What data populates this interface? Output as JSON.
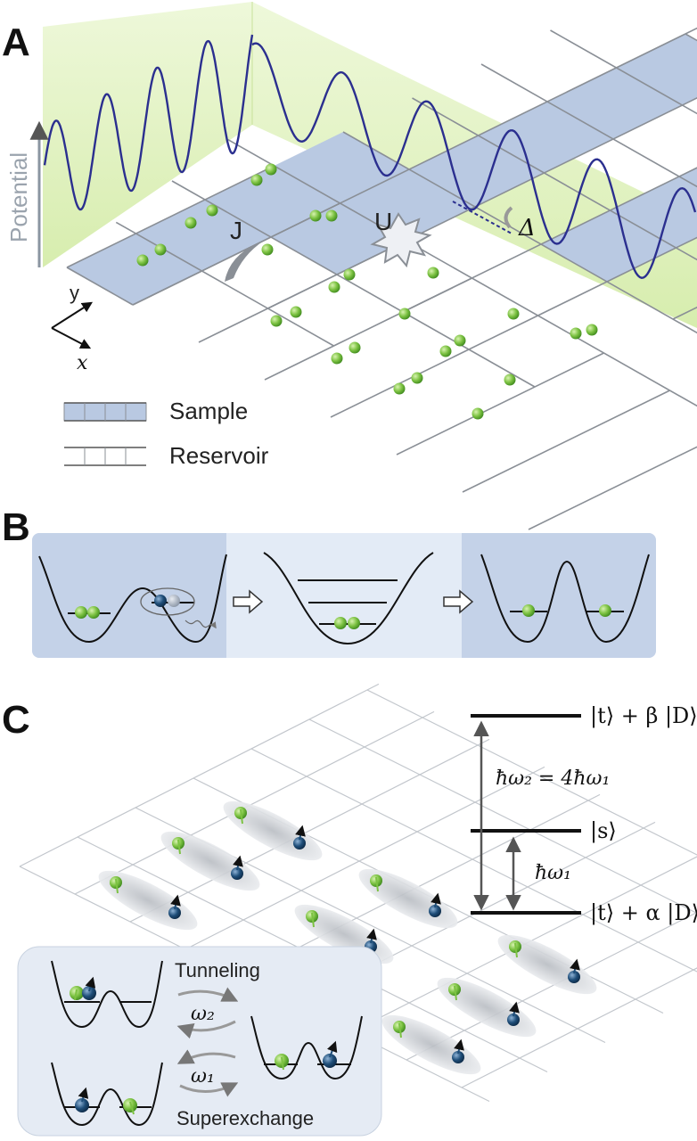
{
  "panels": {
    "a": {
      "letter": "A",
      "axis_label": "Potential",
      "hopping_label": "J",
      "interaction_label": "U",
      "offset_label": "Δ",
      "axis_y": "y",
      "axis_x": "x",
      "legend": {
        "sample": "Sample",
        "reservoir": "Reservoir"
      }
    },
    "b": {
      "letter": "B"
    },
    "c": {
      "letter": "C",
      "levels": {
        "top": "|t⟩ + β |D⟩",
        "middle": "|s⟩",
        "bottom": "|t⟩ + α |D⟩"
      },
      "omega2_eq": "ħω₂ = 4ħω₁",
      "omega1": "ħω₁",
      "inset": {
        "tunneling": "Tunneling",
        "superexchange": "Superexchange",
        "w2": "ω₂",
        "w1": "ω₁"
      }
    }
  },
  "colors": {
    "sample_fill": "#b9c9e2",
    "green_atom": "#7cc242",
    "blue_atom": "#1f4e79",
    "wave": "#2b2f8f",
    "wall": "#e8f5c8",
    "panel_b_dark": "#c4d2e8",
    "panel_b_light": "#e3ebf6",
    "inset_bg": "#e5ebf4"
  }
}
